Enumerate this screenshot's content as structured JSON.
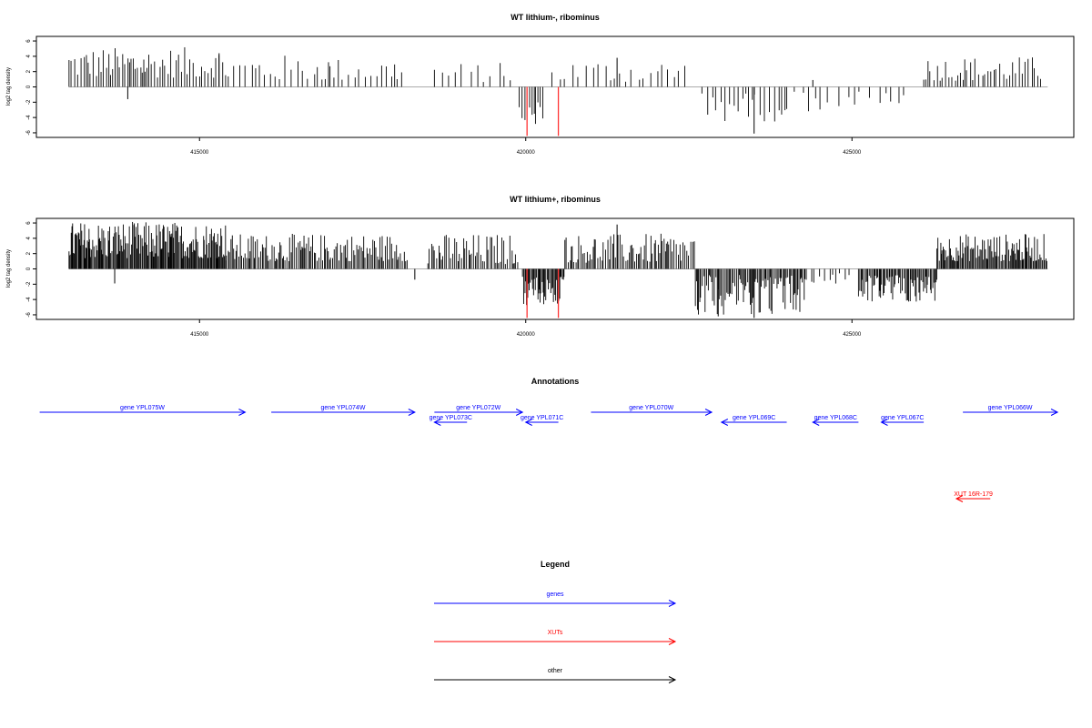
{
  "chart_data": [
    {
      "type": "bar",
      "title": "WT lithium-, ribominus",
      "ylabel": "log2 tag density",
      "xlabel": "",
      "xlim": [
        412500,
        428400
      ],
      "ylim": [
        -6.6,
        6.6
      ],
      "x_ticks": [
        415000,
        420000,
        425000
      ],
      "x_tick_labels": [
        "415000",
        "420000",
        "425000"
      ],
      "y_ticks": [
        -6,
        -4,
        -2,
        0,
        2,
        4,
        6
      ],
      "y_tick_labels": [
        "-6",
        "-4",
        "-2",
        "0",
        "2",
        "4",
        "6"
      ],
      "baseline": [
        413000,
        428000
      ],
      "density_regions": [
        {
          "from": 413000,
          "to": 415400,
          "sign": 1,
          "min": 1.2,
          "max": 5.2,
          "step": 38
        },
        {
          "from": 415400,
          "to": 417000,
          "sign": 1,
          "min": 0.8,
          "max": 4.2,
          "step": 80
        },
        {
          "from": 417000,
          "to": 418100,
          "sign": 1,
          "min": 0.8,
          "max": 3.8,
          "step": 70
        },
        {
          "from": 418600,
          "to": 419900,
          "sign": 1,
          "min": 0.6,
          "max": 3.2,
          "step": 110
        },
        {
          "from": 419900,
          "to": 420300,
          "sign": -1,
          "min": 2.0,
          "max": 5.2,
          "step": 30
        },
        {
          "from": 420400,
          "to": 422500,
          "sign": 1,
          "min": 0.6,
          "max": 3.6,
          "step": 95
        },
        {
          "from": 422700,
          "to": 424000,
          "sign": -1,
          "min": 0.8,
          "max": 4.6,
          "step": 60
        },
        {
          "from": 424000,
          "to": 425800,
          "sign": -1,
          "min": 0.6,
          "max": 3.2,
          "step": 120
        },
        {
          "from": 426100,
          "to": 427900,
          "sign": 1,
          "min": 0.8,
          "max": 4.0,
          "step": 45
        }
      ],
      "extra_bars": [
        {
          "x": 413900,
          "y": -1.6
        },
        {
          "x": 415300,
          "y": 4.4
        },
        {
          "x": 423500,
          "y": -6.1
        },
        {
          "x": 424400,
          "y": 0.9
        },
        {
          "x": 421400,
          "y": 3.8
        }
      ],
      "highlight_bars": [
        {
          "x": 420020,
          "y": -6.4
        },
        {
          "x": 420500,
          "y": -6.4
        }
      ],
      "colors": {
        "bars": "#000000",
        "highlight": "#ff3333",
        "baseline": "#aaaaaa"
      }
    },
    {
      "type": "bar",
      "title": "WT lithium+, ribominus",
      "ylabel": "log2 tag density",
      "xlabel": "",
      "xlim": [
        412500,
        428400
      ],
      "ylim": [
        -6.6,
        6.6
      ],
      "x_ticks": [
        415000,
        420000,
        425000
      ],
      "x_tick_labels": [
        "415000",
        "420000",
        "425000"
      ],
      "y_ticks": [
        -6,
        -4,
        -2,
        0,
        2,
        4,
        6
      ],
      "y_tick_labels": [
        "-6",
        "-4",
        "-2",
        "0",
        "2",
        "4",
        "6"
      ],
      "baseline": [
        413000,
        428000
      ],
      "density_regions": [
        {
          "from": 413000,
          "to": 415400,
          "sign": 1,
          "min": 1.4,
          "max": 6.2,
          "step": 14
        },
        {
          "from": 415400,
          "to": 418200,
          "sign": 1,
          "min": 1.0,
          "max": 4.6,
          "step": 22
        },
        {
          "from": 418500,
          "to": 419900,
          "sign": 1,
          "min": 0.6,
          "max": 4.6,
          "step": 28
        },
        {
          "from": 419950,
          "to": 420600,
          "sign": -1,
          "min": 1.0,
          "max": 5.0,
          "step": 16
        },
        {
          "from": 420600,
          "to": 422600,
          "sign": 1,
          "min": 0.8,
          "max": 4.6,
          "step": 26
        },
        {
          "from": 422600,
          "to": 424300,
          "sign": -1,
          "min": 0.8,
          "max": 6.0,
          "step": 20
        },
        {
          "from": 424300,
          "to": 425000,
          "sign": -1,
          "min": 0.4,
          "max": 2.2,
          "step": 60
        },
        {
          "from": 425100,
          "to": 426300,
          "sign": -1,
          "min": 0.8,
          "max": 4.4,
          "step": 18
        },
        {
          "from": 426300,
          "to": 428000,
          "sign": 1,
          "min": 1.0,
          "max": 4.6,
          "step": 16
        }
      ],
      "extra_bars": [
        {
          "x": 413700,
          "y": -1.9
        },
        {
          "x": 421400,
          "y": 5.8
        },
        {
          "x": 423500,
          "y": -6.4
        },
        {
          "x": 422950,
          "y": -6.2
        },
        {
          "x": 418300,
          "y": -1.4
        }
      ],
      "highlight_bars": [
        {
          "x": 420020,
          "y": -6.4
        },
        {
          "x": 420500,
          "y": -6.4
        }
      ],
      "colors": {
        "bars": "#000000",
        "highlight": "#ff3333",
        "baseline": "#aaaaaa"
      }
    }
  ],
  "annotations": {
    "title": "Annotations",
    "items": [
      {
        "label": "gene YPL075W",
        "kind": "gene",
        "from": 412550,
        "to": 415700,
        "row": 0
      },
      {
        "label": "gene YPL074W",
        "kind": "gene",
        "from": 416100,
        "to": 418300,
        "row": 0
      },
      {
        "label": "gene YPL072W",
        "kind": "gene",
        "from": 418600,
        "to": 419950,
        "row": 0
      },
      {
        "label": "gene YPL073C",
        "kind": "gene",
        "from": 419100,
        "to": 418600,
        "row": 1
      },
      {
        "label": "gene YPL071C",
        "kind": "gene",
        "from": 420500,
        "to": 420000,
        "row": 1
      },
      {
        "label": "gene YPL070W",
        "kind": "gene",
        "from": 421000,
        "to": 422850,
        "row": 0
      },
      {
        "label": "gene YPL069C",
        "kind": "gene",
        "from": 424000,
        "to": 423000,
        "row": 1
      },
      {
        "label": "gene YPL068C",
        "kind": "gene",
        "from": 425100,
        "to": 424400,
        "row": 1
      },
      {
        "label": "gene YPL067C",
        "kind": "gene",
        "from": 426100,
        "to": 425450,
        "row": 1
      },
      {
        "label": "gene YPL066W",
        "kind": "gene",
        "from": 426700,
        "to": 428150,
        "row": 0
      },
      {
        "label": "XUT 16R-179",
        "kind": "xut",
        "from": 427120,
        "to": 426600,
        "row": 2
      }
    ]
  },
  "legend": {
    "title": "Legend",
    "items": [
      {
        "label": "genes",
        "color": "#0000ff"
      },
      {
        "label": "XUTs",
        "color": "#ff0000"
      },
      {
        "label": "other",
        "color": "#000000"
      }
    ]
  }
}
